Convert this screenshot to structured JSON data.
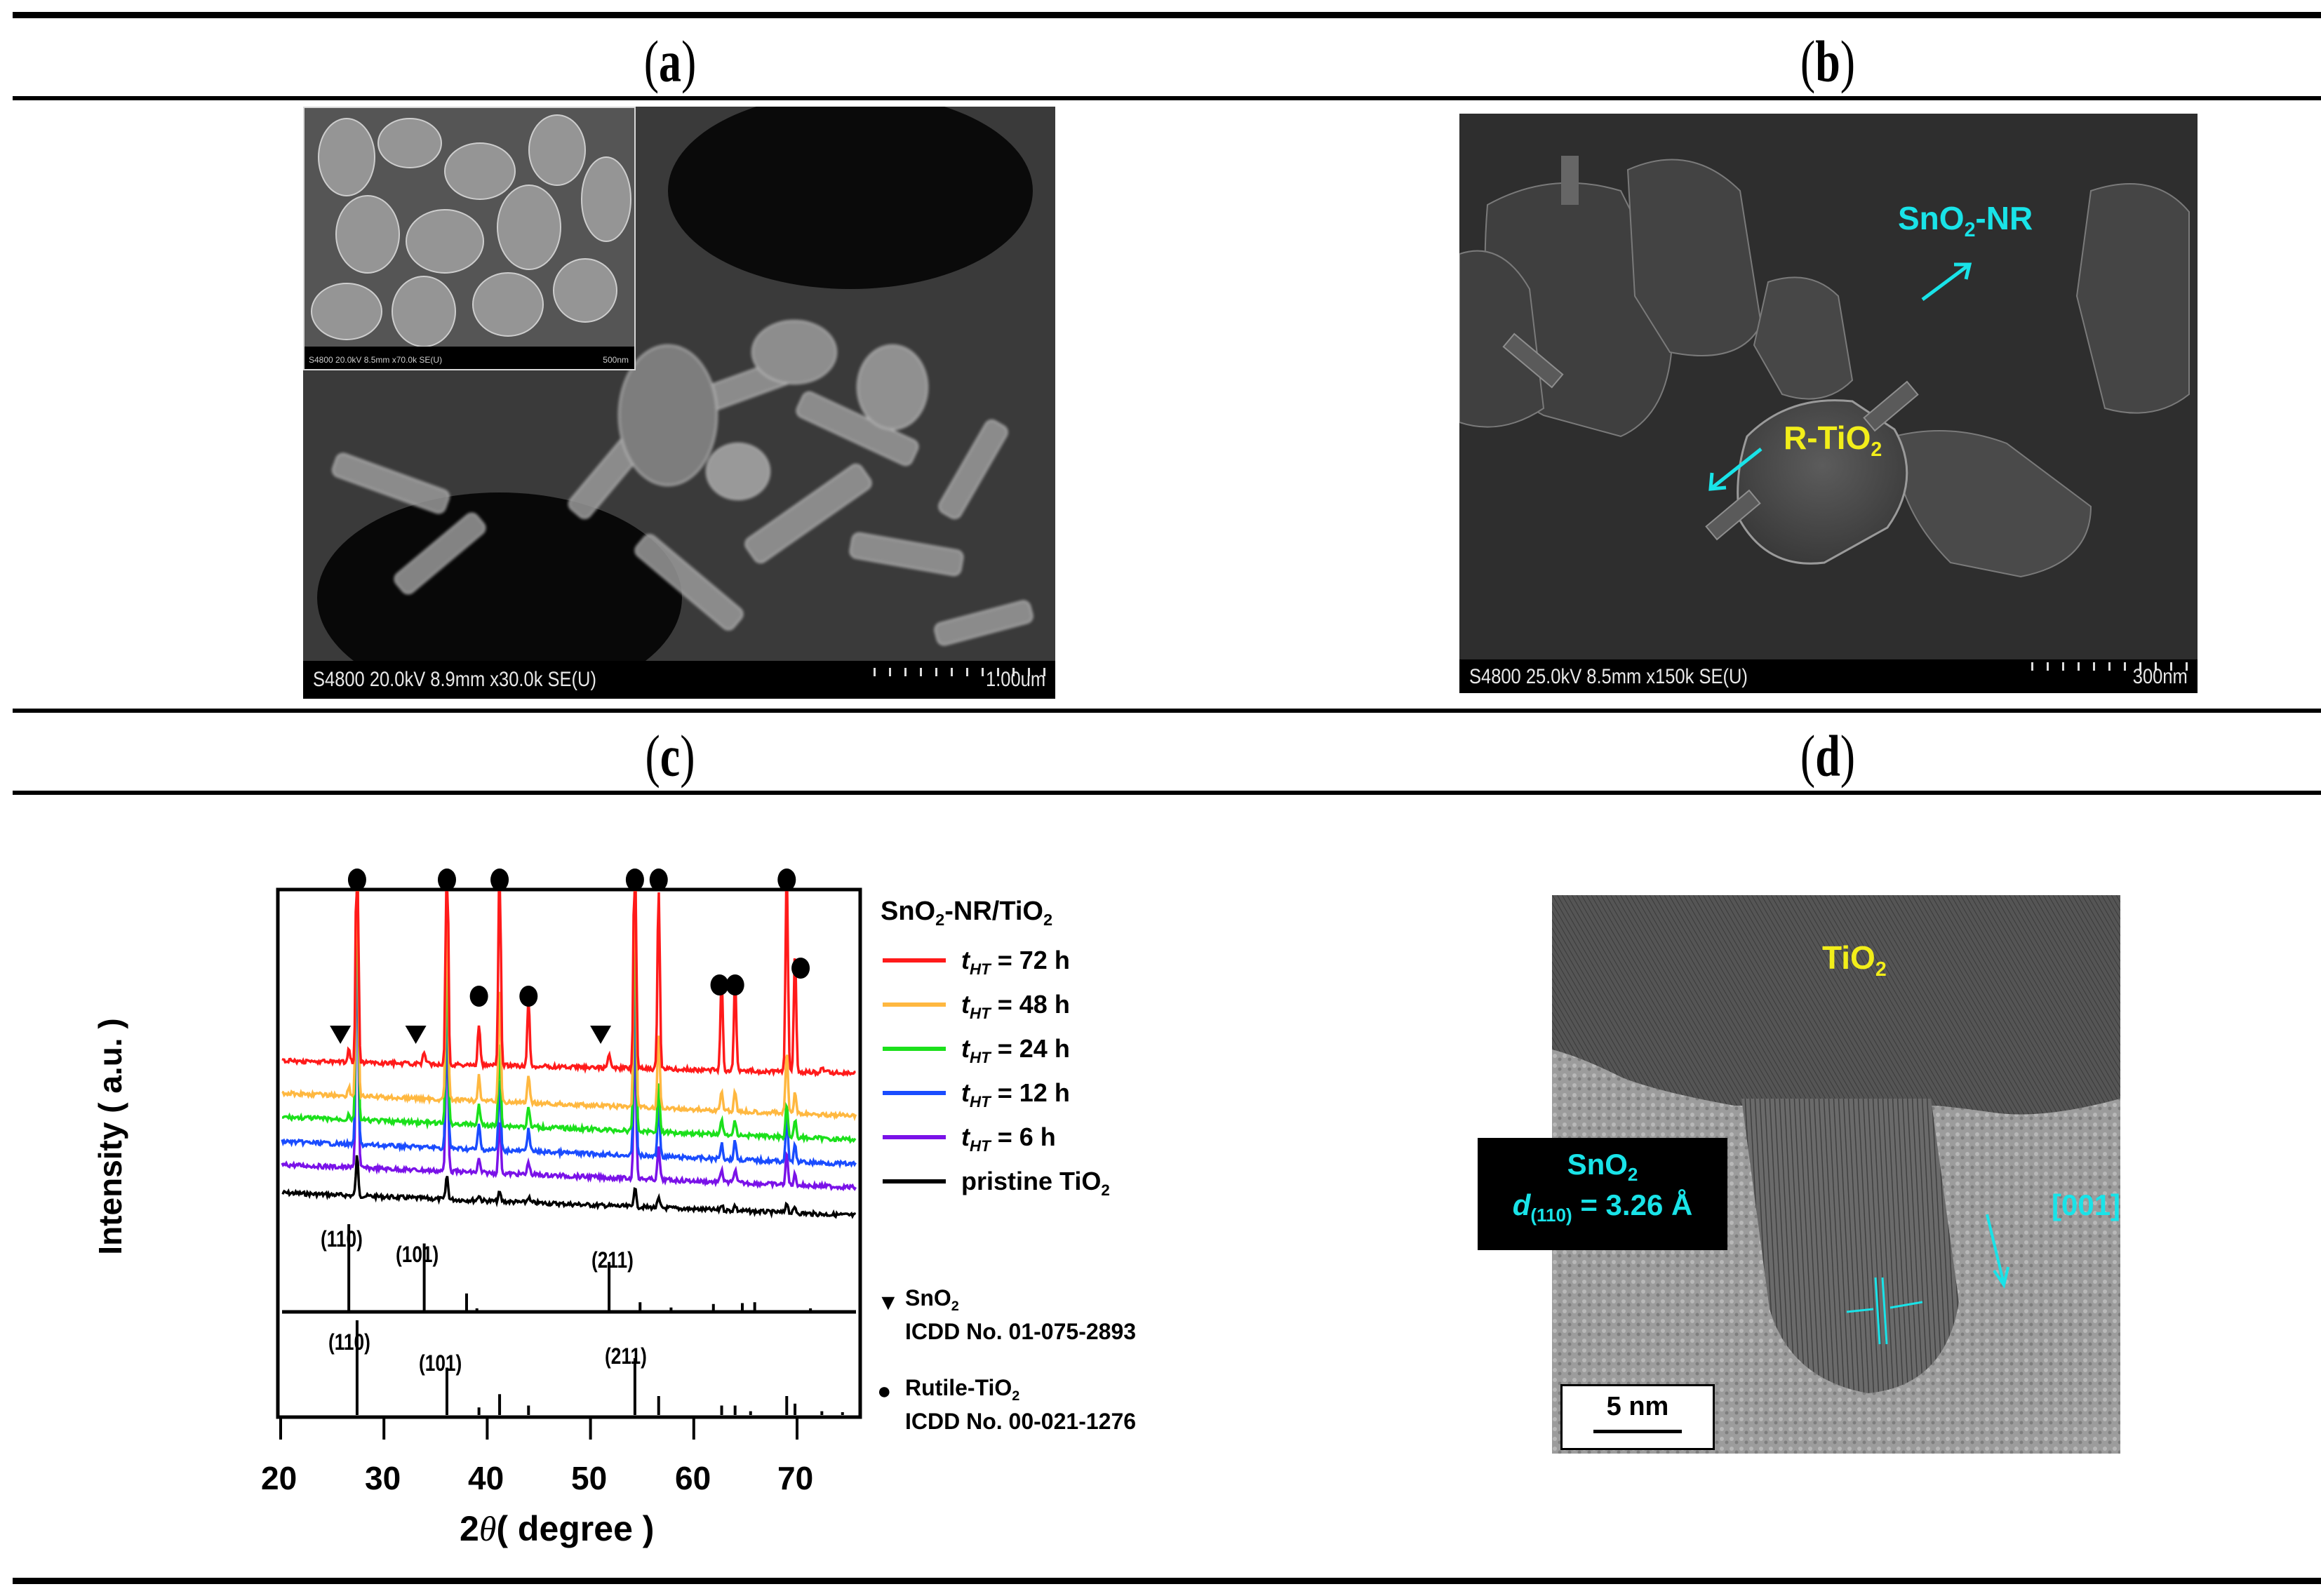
{
  "figure": {
    "panels": [
      {
        "id": "a",
        "label": "a"
      },
      {
        "id": "b",
        "label": "b"
      },
      {
        "id": "c",
        "label": "c"
      },
      {
        "id": "d",
        "label": "d"
      }
    ]
  },
  "panel_a": {
    "label": "a",
    "main_info": "S4800 20.0kV 8.9mm x30.0k SE(U)",
    "main_scale": "1.00um",
    "inset_info": "S4800 20.0kV 8.5mm x70.0k SE(U)",
    "inset_scale": "500nm"
  },
  "panel_b": {
    "label": "b",
    "info": "S4800 25.0kV 8.5mm x150k SE(U)",
    "scale": "300nm",
    "annotation_nr": {
      "text": "SnO",
      "sub": "2",
      "suffix": "-NR",
      "color": "#19e3e8"
    },
    "annotation_tio2": {
      "text": "R-TiO",
      "sub": "2",
      "color": "#f2ee1a"
    }
  },
  "panel_c": {
    "label": "c",
    "legend_title": {
      "pre": "SnO",
      "sub1": "2",
      "mid": "-NR/TiO",
      "sub2": "2"
    },
    "legend": [
      {
        "var": "t",
        "sub": "HT",
        "value": " = 72 h",
        "color": "#ff1a1a"
      },
      {
        "var": "t",
        "sub": "HT",
        "value": " = 48 h",
        "color": "#ffb840"
      },
      {
        "var": "t",
        "sub": "HT",
        "value": " = 24 h",
        "color": "#1be01b"
      },
      {
        "var": "t",
        "sub": "HT",
        "value": " = 12 h",
        "color": "#1a4cff"
      },
      {
        "var": "t",
        "sub": "HT",
        "value": " = 6 h",
        "color": "#7a12e8"
      },
      {
        "var": "",
        "sub": "",
        "value": "pristine TiO",
        "sub_after": "2",
        "color": "#000000"
      }
    ],
    "ref_legend": [
      {
        "marker": "▼",
        "name": "SnO",
        "sub": "2",
        "icdd": "ICDD No. 01-075-2893"
      },
      {
        "marker": "●",
        "name": "Rutile-TiO",
        "sub": "2",
        "icdd": "ICDD No. 00-021-1276"
      }
    ],
    "ylabel": "Intensity  ( a.u. )",
    "xlabel_pre": "2",
    "xlabel_theta": "θ",
    "xlabel_post": "( degree )",
    "xticks": [
      "20",
      "30",
      "40",
      "50",
      "60",
      "70"
    ],
    "sno2_ref_labels": [
      "(110)",
      "(101)",
      "(211)"
    ],
    "rutile_ref_labels": [
      "(110)",
      "(101)",
      "(211)"
    ]
  },
  "panel_d": {
    "label": "d",
    "tio2_label": {
      "text": "TiO",
      "sub": "2"
    },
    "sno2_box": {
      "line1_pre": "SnO",
      "line1_sub": "2",
      "line2_var": "d",
      "line2_sub": "(110)",
      "line2_value": " = 3.26  Å"
    },
    "direction": "[001]",
    "scale": "5 nm"
  },
  "chart_data": {
    "type": "line",
    "title": "",
    "xlabel": "2θ ( degree )",
    "ylabel": "Intensity ( a.u. )",
    "xlim": [
      20,
      75
    ],
    "xticks": [
      20,
      30,
      40,
      50,
      60,
      70
    ],
    "y_scale": "arbitrary, stacked offsets",
    "grid": false,
    "legend_position": "right",
    "legend_title": "SnO2-NR/TiO2",
    "series": [
      {
        "name": "t_HT = 72 h",
        "color": "#ff1a1a",
        "baseline": 0.55,
        "peaks": [
          {
            "x": 26.6,
            "h": 0.05
          },
          {
            "x": 27.4,
            "h": 1.0
          },
          {
            "x": 33.9,
            "h": 0.04
          },
          {
            "x": 36.1,
            "h": 0.98
          },
          {
            "x": 39.2,
            "h": 0.14
          },
          {
            "x": 41.2,
            "h": 0.75
          },
          {
            "x": 44.0,
            "h": 0.23
          },
          {
            "x": 51.8,
            "h": 0.05
          },
          {
            "x": 54.3,
            "h": 1.0
          },
          {
            "x": 56.6,
            "h": 0.62
          },
          {
            "x": 62.7,
            "h": 0.32
          },
          {
            "x": 64.0,
            "h": 0.32
          },
          {
            "x": 69.0,
            "h": 0.73
          },
          {
            "x": 69.8,
            "h": 0.41
          },
          {
            "x": 72.4,
            "h": 0.02
          }
        ]
      },
      {
        "name": "t_HT = 48 h",
        "color": "#ffb840",
        "baseline": 0.38,
        "peaks": [
          {
            "x": 26.6,
            "h": 0.03
          },
          {
            "x": 27.4,
            "h": 1.0
          },
          {
            "x": 36.1,
            "h": 0.8
          },
          {
            "x": 39.2,
            "h": 0.09
          },
          {
            "x": 41.2,
            "h": 0.4
          },
          {
            "x": 44.0,
            "h": 0.09
          },
          {
            "x": 54.3,
            "h": 1.0
          },
          {
            "x": 56.6,
            "h": 0.26
          },
          {
            "x": 62.7,
            "h": 0.07
          },
          {
            "x": 64.0,
            "h": 0.07
          },
          {
            "x": 69.0,
            "h": 0.22
          },
          {
            "x": 69.8,
            "h": 0.07
          }
        ]
      },
      {
        "name": "t_HT = 24 h",
        "color": "#1be01b",
        "baseline": 0.3,
        "peaks": [
          {
            "x": 26.6,
            "h": 0.02
          },
          {
            "x": 27.4,
            "h": 1.0
          },
          {
            "x": 36.1,
            "h": 0.72
          },
          {
            "x": 39.2,
            "h": 0.07
          },
          {
            "x": 41.2,
            "h": 0.3
          },
          {
            "x": 44.0,
            "h": 0.07
          },
          {
            "x": 54.3,
            "h": 0.9
          },
          {
            "x": 56.6,
            "h": 0.17
          },
          {
            "x": 62.7,
            "h": 0.05
          },
          {
            "x": 64.0,
            "h": 0.05
          },
          {
            "x": 69.0,
            "h": 0.12
          },
          {
            "x": 69.8,
            "h": 0.06
          }
        ]
      },
      {
        "name": "t_HT = 12 h",
        "color": "#1a4cff",
        "baseline": 0.22,
        "peaks": [
          {
            "x": 27.4,
            "h": 1.0
          },
          {
            "x": 36.1,
            "h": 0.68
          },
          {
            "x": 39.2,
            "h": 0.09
          },
          {
            "x": 41.2,
            "h": 0.26
          },
          {
            "x": 44.0,
            "h": 0.09
          },
          {
            "x": 54.3,
            "h": 0.78
          },
          {
            "x": 56.6,
            "h": 0.2
          },
          {
            "x": 62.7,
            "h": 0.06
          },
          {
            "x": 64.0,
            "h": 0.07
          },
          {
            "x": 69.0,
            "h": 0.17
          },
          {
            "x": 69.8,
            "h": 0.06
          }
        ]
      },
      {
        "name": "t_HT = 6 h",
        "color": "#7a12e8",
        "baseline": 0.15,
        "peaks": [
          {
            "x": 27.4,
            "h": 1.0
          },
          {
            "x": 36.1,
            "h": 0.62
          },
          {
            "x": 39.2,
            "h": 0.05
          },
          {
            "x": 41.2,
            "h": 0.2
          },
          {
            "x": 44.0,
            "h": 0.05
          },
          {
            "x": 54.3,
            "h": 0.6
          },
          {
            "x": 56.6,
            "h": 0.12
          },
          {
            "x": 62.7,
            "h": 0.05
          },
          {
            "x": 64.0,
            "h": 0.05
          },
          {
            "x": 69.0,
            "h": 0.12
          },
          {
            "x": 69.8,
            "h": 0.04
          }
        ]
      },
      {
        "name": "pristine TiO2",
        "color": "#000000",
        "baseline": 0.08,
        "peaks": [
          {
            "x": 27.4,
            "h": 0.22
          },
          {
            "x": 36.1,
            "h": 0.13
          },
          {
            "x": 39.2,
            "h": 0.03
          },
          {
            "x": 41.2,
            "h": 0.05
          },
          {
            "x": 44.0,
            "h": 0.03
          },
          {
            "x": 54.3,
            "h": 0.11
          },
          {
            "x": 56.6,
            "h": 0.05
          },
          {
            "x": 62.7,
            "h": 0.03
          },
          {
            "x": 64.0,
            "h": 0.03
          },
          {
            "x": 69.0,
            "h": 0.06
          },
          {
            "x": 69.8,
            "h": 0.03
          }
        ]
      }
    ],
    "markers": {
      "rutile_dots_top": [
        27.4,
        36.1,
        41.2,
        54.3,
        56.6,
        69.0
      ],
      "rutile_dots_mid": [
        39.2,
        44.0,
        62.7,
        64.0,
        69.8
      ],
      "sno2_triangles": [
        26.6,
        33.9,
        51.8
      ]
    },
    "reference_patterns": [
      {
        "name": "SnO2 ICDD No. 01-075-2893",
        "lines": [
          {
            "x": 26.6,
            "h": 1.0,
            "label": "(110)"
          },
          {
            "x": 33.9,
            "h": 0.78,
            "label": "(101)"
          },
          {
            "x": 38.0,
            "h": 0.21
          },
          {
            "x": 39.0,
            "h": 0.04
          },
          {
            "x": 51.8,
            "h": 0.57,
            "label": "(211)"
          },
          {
            "x": 54.8,
            "h": 0.11
          },
          {
            "x": 57.8,
            "h": 0.05
          },
          {
            "x": 61.9,
            "h": 0.09
          },
          {
            "x": 64.7,
            "h": 0.1
          },
          {
            "x": 65.9,
            "h": 0.11
          },
          {
            "x": 71.3,
            "h": 0.04
          }
        ]
      },
      {
        "name": "Rutile-TiO2 ICDD No. 00-021-1276",
        "lines": [
          {
            "x": 27.4,
            "h": 1.0,
            "label": "(110)"
          },
          {
            "x": 36.1,
            "h": 0.5,
            "label": "(101)"
          },
          {
            "x": 39.2,
            "h": 0.08
          },
          {
            "x": 41.2,
            "h": 0.22
          },
          {
            "x": 44.0,
            "h": 0.1
          },
          {
            "x": 54.3,
            "h": 0.6,
            "label": "(211)"
          },
          {
            "x": 56.6,
            "h": 0.2
          },
          {
            "x": 62.7,
            "h": 0.1
          },
          {
            "x": 64.0,
            "h": 0.1
          },
          {
            "x": 65.5,
            "h": 0.04
          },
          {
            "x": 69.0,
            "h": 0.2
          },
          {
            "x": 69.8,
            "h": 0.12
          },
          {
            "x": 72.4,
            "h": 0.04
          },
          {
            "x": 74.4,
            "h": 0.03
          }
        ]
      }
    ]
  }
}
